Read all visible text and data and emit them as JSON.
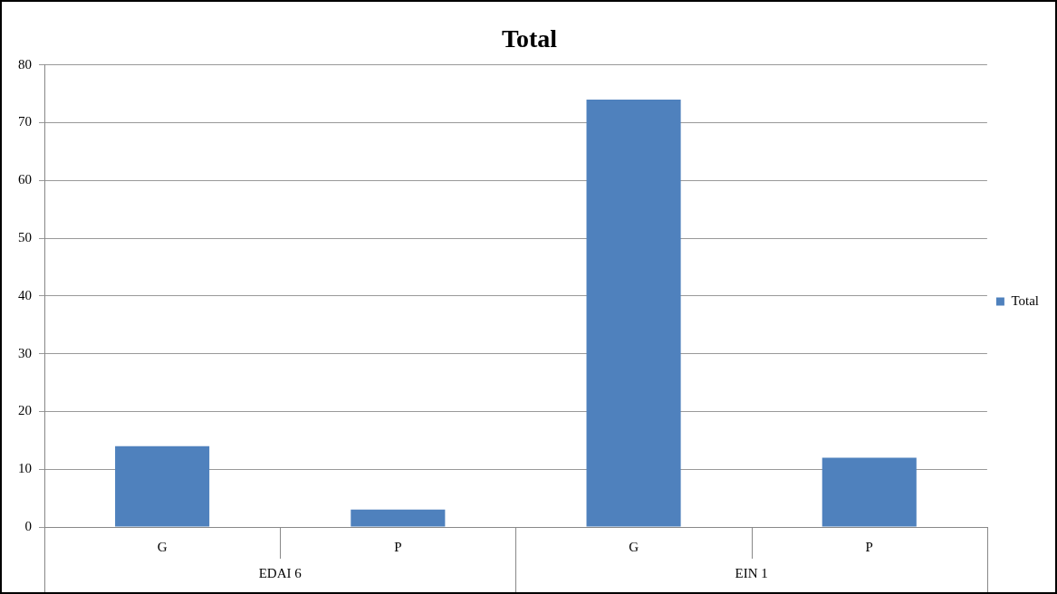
{
  "chart_data": {
    "type": "bar",
    "title": "Total",
    "categories": [
      "G",
      "P",
      "G",
      "P"
    ],
    "series": [
      {
        "name": "Total",
        "color": "#4f81bd",
        "values": [
          14,
          3,
          74,
          12
        ]
      }
    ],
    "annotations": [
      "EDAI 6",
      "EIN 1"
    ],
    "ylim": [
      0,
      80
    ],
    "yticks": [
      0,
      10,
      20,
      30,
      40,
      50,
      60,
      70,
      80
    ],
    "grid": "y",
    "legend": "right"
  }
}
